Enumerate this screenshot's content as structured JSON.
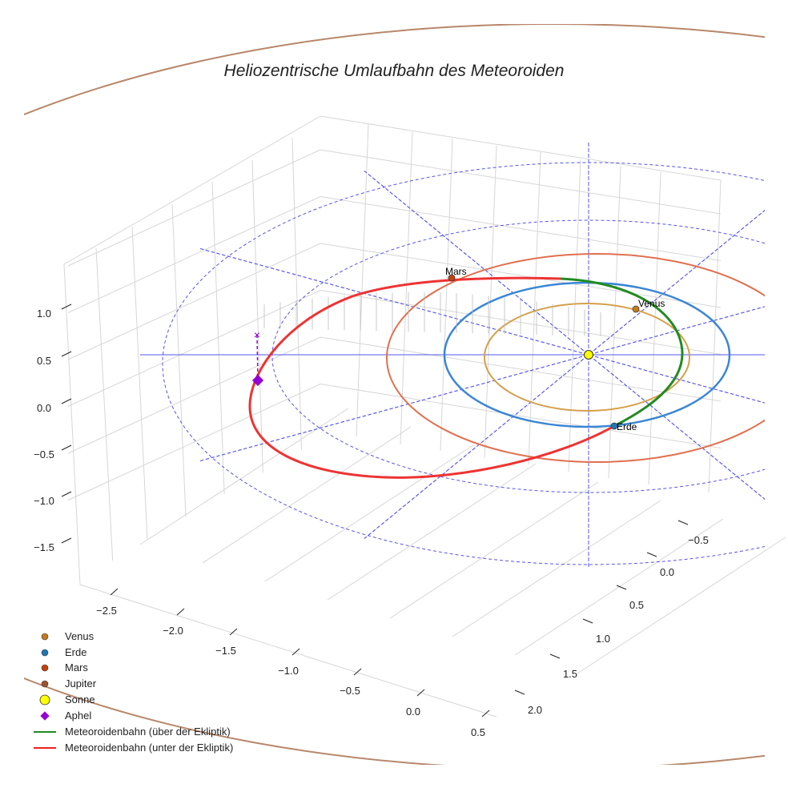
{
  "chart_data": {
    "type": "3d-line",
    "title": "Heliozentrische Umlaufbahn des Meteoroiden",
    "xlabel": "",
    "ylabel": "",
    "zlabel": "",
    "x_ticks": [
      "−2.5",
      "−2.0",
      "−1.5",
      "−1.0",
      "−0.5",
      "0.0",
      "0.5"
    ],
    "y_ticks": [
      "−0.5",
      "0.0",
      "0.5",
      "1.0",
      "1.5",
      "2.0"
    ],
    "z_ticks": [
      "1.0",
      "0.5",
      "0.0",
      "−0.5",
      "−1.0",
      "−1.5"
    ],
    "xlim": [
      -2.8,
      0.6
    ],
    "ylim": [
      -0.8,
      2.3
    ],
    "zlim": [
      -1.9,
      1.4
    ],
    "orbits": [
      {
        "name": "Venus",
        "radius_au": 0.72,
        "color": "#d4a04a"
      },
      {
        "name": "Erde",
        "radius_au": 1.0,
        "color": "#3a86d4"
      },
      {
        "name": "Mars",
        "radius_au": 1.52,
        "color": "#e07050"
      },
      {
        "name": "Jupiter",
        "radius_au": 5.2,
        "color": "#b8876a"
      }
    ],
    "point_labels": {
      "mars": "Mars",
      "venus": "Venus",
      "erde": "Erde"
    },
    "legend": {
      "placement": "bottom-left",
      "entries": [
        {
          "label": "Venus",
          "marker": "circle",
          "color": "#c27c1e"
        },
        {
          "label": "Erde",
          "marker": "circle",
          "color": "#1f77b4"
        },
        {
          "label": "Mars",
          "marker": "circle",
          "color": "#c1440e"
        },
        {
          "label": "Jupiter",
          "marker": "circle",
          "color": "#a0522d"
        },
        {
          "label": "Sonne",
          "marker": "circle",
          "color": "#ffff00"
        },
        {
          "label": "Aphel",
          "marker": "diamond",
          "color": "#9400d3"
        },
        {
          "label": "Meteoroidenbahn (über der Ekliptik)",
          "marker": "line",
          "color": "#228b22"
        },
        {
          "label": "Meteoroidenbahn (unter der Ekliptik)",
          "marker": "line",
          "color": "#ee2222"
        }
      ]
    }
  }
}
